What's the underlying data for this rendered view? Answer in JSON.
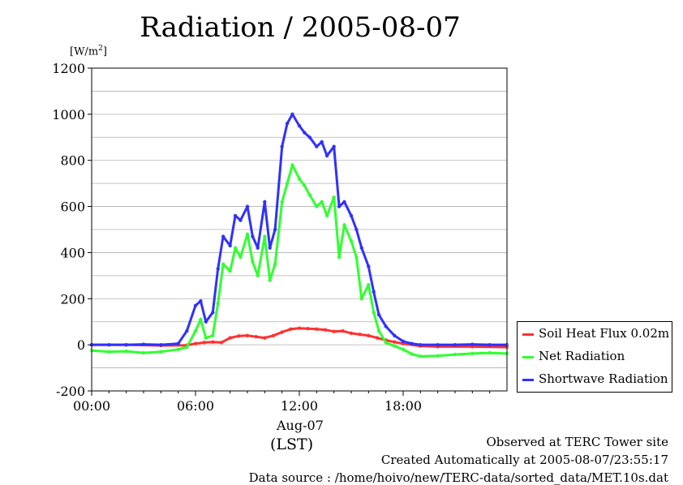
{
  "chart_data": {
    "type": "line",
    "title": "Radiation / 2005-08-07",
    "unit_prefix": "[W/m",
    "unit_sup": "2",
    "unit_suffix": "]",
    "ylim": [
      -200,
      1200
    ],
    "yticks": [
      -200,
      0,
      200,
      400,
      600,
      800,
      1000,
      1200
    ],
    "xlim": [
      0,
      24
    ],
    "xticks": [
      {
        "x": 0,
        "label": "00:00"
      },
      {
        "x": 6,
        "label": "06:00"
      },
      {
        "x": 12,
        "label": "12:00"
      },
      {
        "x": 18,
        "label": "18:00"
      }
    ],
    "date_label": "Aug-07",
    "xlabel": "(LST)",
    "grid": true,
    "legend_position": "right-bottom",
    "series": [
      {
        "name": "Soil Heat Flux 0.02m",
        "color": "#ff3030",
        "x": [
          0,
          2,
          4,
          5.5,
          6,
          6.5,
          7,
          7.5,
          8,
          8.5,
          9,
          9.5,
          10,
          10.5,
          11,
          11.5,
          12,
          12.5,
          13,
          13.5,
          14,
          14.5,
          15,
          15.5,
          16,
          16.5,
          17,
          17.5,
          18,
          19,
          20,
          22,
          24
        ],
        "y": [
          0,
          0,
          -3,
          -2,
          5,
          10,
          12,
          10,
          30,
          38,
          40,
          35,
          30,
          40,
          55,
          68,
          72,
          70,
          68,
          65,
          58,
          60,
          50,
          45,
          40,
          30,
          20,
          12,
          5,
          -5,
          -8,
          -8,
          -10
        ]
      },
      {
        "name": "Net Radiation",
        "color": "#30ff30",
        "x": [
          0,
          1,
          2,
          3,
          4,
          5,
          5.5,
          6,
          6.3,
          6.6,
          7,
          7.3,
          7.6,
          8,
          8.3,
          8.6,
          9,
          9.3,
          9.6,
          10,
          10.3,
          10.6,
          11,
          11.3,
          11.6,
          12,
          12.3,
          12.6,
          13,
          13.3,
          13.6,
          14,
          14.3,
          14.6,
          15,
          15.3,
          15.6,
          16,
          16.3,
          16.6,
          17,
          17.5,
          18,
          18.5,
          19,
          20,
          21,
          22,
          23,
          24
        ],
        "y": [
          -25,
          -30,
          -28,
          -35,
          -30,
          -20,
          -10,
          60,
          110,
          30,
          40,
          180,
          350,
          320,
          420,
          380,
          480,
          360,
          300,
          470,
          280,
          350,
          620,
          700,
          780,
          720,
          690,
          650,
          600,
          620,
          560,
          640,
          380,
          520,
          450,
          380,
          200,
          260,
          140,
          60,
          10,
          -5,
          -20,
          -40,
          -50,
          -48,
          -42,
          -38,
          -35,
          -38
        ]
      },
      {
        "name": "Shortwave Radiation",
        "color": "#3030ff",
        "x": [
          0,
          1,
          2,
          3,
          4,
          5,
          5.5,
          6,
          6.3,
          6.6,
          7,
          7.3,
          7.6,
          8,
          8.3,
          8.6,
          9,
          9.3,
          9.6,
          10,
          10.3,
          10.6,
          11,
          11.3,
          11.6,
          12,
          12.3,
          12.6,
          13,
          13.3,
          13.6,
          14,
          14.3,
          14.6,
          15,
          15.3,
          15.6,
          16,
          16.3,
          16.6,
          17,
          17.5,
          18,
          18.5,
          19,
          20,
          21,
          22,
          23,
          24
        ],
        "y": [
          0,
          0,
          0,
          2,
          0,
          5,
          60,
          170,
          190,
          100,
          140,
          330,
          470,
          430,
          560,
          540,
          600,
          470,
          420,
          620,
          420,
          500,
          860,
          960,
          1000,
          950,
          920,
          900,
          860,
          880,
          820,
          860,
          600,
          620,
          560,
          500,
          420,
          340,
          230,
          130,
          80,
          40,
          15,
          5,
          0,
          0,
          0,
          2,
          0,
          0
        ]
      }
    ]
  },
  "info": {
    "line1": "Observed at TERC Tower site",
    "line2": "Created Automatically at 2005-08-07/23:55:17",
    "line3": "Data source : /home/hoivo/new/TERC-data/sorted_data/MET.10s.dat"
  }
}
